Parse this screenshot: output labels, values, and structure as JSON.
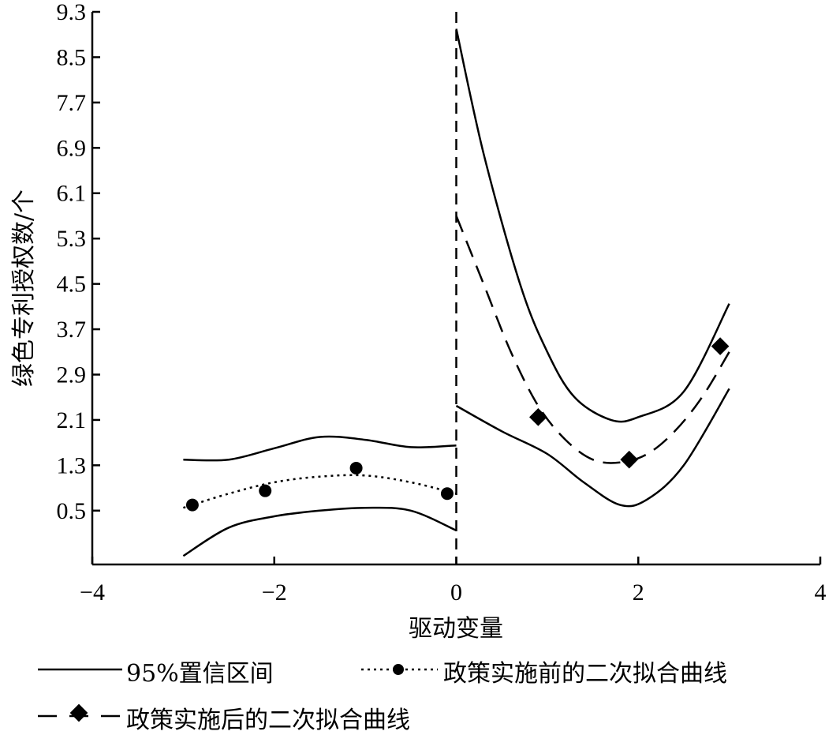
{
  "chart_data": {
    "type": "line",
    "title": "",
    "xlabel": "驱动变量",
    "ylabel": "绿色专利授权数/个",
    "xlim": [
      -4,
      4
    ],
    "ylim": [
      -0.45,
      9.3
    ],
    "x_ticks": [
      -4,
      -2,
      0,
      2,
      4
    ],
    "x_tick_labels": [
      "−4",
      "−2",
      "0",
      "2",
      "4"
    ],
    "y_ticks": [
      0.5,
      1.3,
      2.1,
      2.9,
      3.7,
      4.5,
      5.3,
      6.1,
      6.9,
      7.7,
      8.5,
      9.3
    ],
    "y_tick_labels": [
      "0.5",
      "1.3",
      "2.1",
      "2.9",
      "3.7",
      "4.5",
      "5.3",
      "6.1",
      "6.9",
      "7.7",
      "8.5",
      "9.3"
    ],
    "cutoff_x": 0,
    "grid": false,
    "legend_position": "bottom",
    "series": [
      {
        "name": "95%置信区间",
        "style": "solid",
        "segments": [
          {
            "x": [
              -3,
              -2.5,
              -2,
              -1.5,
              -1,
              -0.5,
              0
            ],
            "y": [
              1.4,
              1.4,
              1.6,
              1.8,
              1.75,
              1.62,
              1.65
            ]
          },
          {
            "x": [
              -3,
              -2.5,
              -2,
              -1.5,
              -1,
              -0.5,
              0
            ],
            "y": [
              -0.3,
              0.2,
              0.4,
              0.5,
              0.55,
              0.5,
              0.15
            ]
          },
          {
            "x": [
              0,
              0.3,
              0.7,
              1.0,
              1.3,
              1.7,
              2.0,
              2.5,
              3.0
            ],
            "y": [
              9.0,
              6.8,
              4.5,
              3.3,
              2.5,
              2.1,
              2.15,
              2.6,
              4.15
            ]
          },
          {
            "x": [
              0,
              0.5,
              1.0,
              1.4,
              1.8,
              2.1,
              2.5,
              3.0
            ],
            "y": [
              2.35,
              1.9,
              1.5,
              1.0,
              0.6,
              0.7,
              1.3,
              2.65
            ]
          }
        ]
      },
      {
        "name": "政策实施前的二次拟合曲线",
        "style": "dotted",
        "marker": "circle",
        "x": [
          -2.9,
          -2.1,
          -1.1,
          -0.1
        ],
        "y": [
          0.6,
          0.85,
          1.25,
          0.8
        ],
        "fit": {
          "x": [
            -3,
            -2.5,
            -2,
            -1.5,
            -1,
            -0.5,
            0
          ],
          "y": [
            0.55,
            0.8,
            1.0,
            1.1,
            1.12,
            1.0,
            0.8
          ]
        }
      },
      {
        "name": "政策实施后的二次拟合曲线",
        "style": "dashed",
        "marker": "diamond",
        "x": [
          0.9,
          1.9,
          2.9
        ],
        "y": [
          2.15,
          1.4,
          3.4
        ],
        "fit": {
          "x": [
            0,
            0.3,
            0.6,
            0.9,
            1.2,
            1.5,
            1.8,
            2.1,
            2.4,
            2.7,
            3.0
          ],
          "y": [
            5.7,
            4.5,
            3.3,
            2.35,
            1.75,
            1.4,
            1.35,
            1.5,
            1.9,
            2.5,
            3.3
          ]
        }
      }
    ]
  },
  "legend": {
    "ci_label": "95%置信区间",
    "pre_label": "政策实施前的二次拟合曲线",
    "post_label": "政策实施后的二次拟合曲线"
  }
}
